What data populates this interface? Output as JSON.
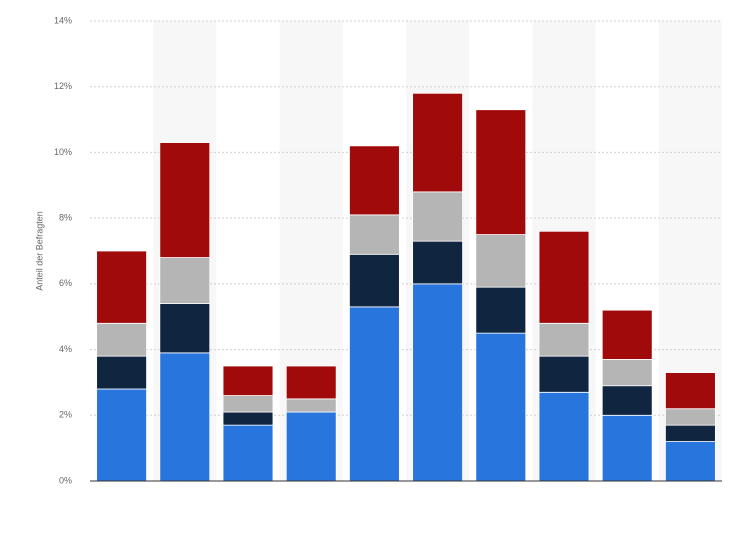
{
  "chart_data": {
    "type": "stacked_bar",
    "y_label": "Anteil der Befragten",
    "categories": [
      null,
      null,
      null,
      null,
      null,
      null,
      null,
      null,
      null,
      null
    ],
    "series": [
      {
        "color": "#2876dd",
        "values": [
          2.8,
          3.9,
          1.7,
          2.1,
          5.3,
          6.0,
          4.5,
          2.7,
          2.0,
          1.2
        ]
      },
      {
        "color": "#0f2540",
        "values": [
          1.0,
          1.5,
          0.4,
          0,
          1.6,
          1.3,
          1.4,
          1.1,
          0.9,
          0.5
        ]
      },
      {
        "color": "#b5b5b5",
        "values": [
          1.0,
          1.4,
          0.5,
          0.4,
          1.2,
          1.5,
          1.6,
          1.0,
          0.8,
          0.5
        ]
      },
      {
        "color": "#a10a0a",
        "values": [
          2.2,
          3.5,
          0.9,
          1.0,
          2.1,
          3.0,
          3.8,
          2.8,
          1.5,
          1.1
        ]
      }
    ],
    "ylim": [
      0,
      14
    ],
    "yticks": [
      {
        "value": 0,
        "label": "0%"
      },
      {
        "value": 2,
        "label": "2%"
      },
      {
        "value": 4,
        "label": "4%"
      },
      {
        "value": 6,
        "label": "6%"
      },
      {
        "value": 8,
        "label": "8%"
      },
      {
        "value": 10,
        "label": "10%"
      },
      {
        "value": 12,
        "label": "12%"
      },
      {
        "value": 14,
        "label": "14%"
      }
    ],
    "grid": true
  }
}
